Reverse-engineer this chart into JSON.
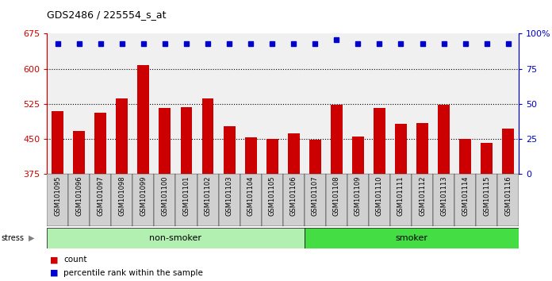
{
  "title": "GDS2486 / 225554_s_at",
  "samples": [
    "GSM101095",
    "GSM101096",
    "GSM101097",
    "GSM101098",
    "GSM101099",
    "GSM101100",
    "GSM101101",
    "GSM101102",
    "GSM101103",
    "GSM101104",
    "GSM101105",
    "GSM101106",
    "GSM101107",
    "GSM101108",
    "GSM101109",
    "GSM101110",
    "GSM101111",
    "GSM101112",
    "GSM101113",
    "GSM101114",
    "GSM101115",
    "GSM101116"
  ],
  "bar_values": [
    510,
    468,
    507,
    537,
    608,
    517,
    519,
    537,
    477,
    453,
    451,
    463,
    449,
    523,
    456,
    517,
    483,
    484,
    523,
    450,
    442,
    472
  ],
  "percentile_values": [
    93,
    93,
    93,
    93,
    93,
    93,
    93,
    93,
    93,
    93,
    93,
    93,
    93,
    96,
    93,
    93,
    93,
    93,
    93,
    93,
    93,
    93
  ],
  "bar_color": "#cc0000",
  "dot_color": "#0000cc",
  "ylim_left": [
    375,
    675
  ],
  "ylim_right": [
    0,
    100
  ],
  "yticks_left": [
    375,
    450,
    525,
    600,
    675
  ],
  "yticks_right": [
    0,
    25,
    50,
    75,
    100
  ],
  "non_smoker_count": 12,
  "smoker_count": 10,
  "non_smoker_color": "#b2f0b2",
  "smoker_color": "#44dd44",
  "tick_bg_color": "#d0d0d0",
  "legend_count_color": "#cc0000",
  "legend_dot_color": "#0000cc",
  "stress_label": "stress",
  "non_smoker_label": "non-smoker",
  "smoker_label": "smoker",
  "legend_count": "count",
  "legend_percentile": "percentile rank within the sample",
  "background_color": "#f0f0f0"
}
